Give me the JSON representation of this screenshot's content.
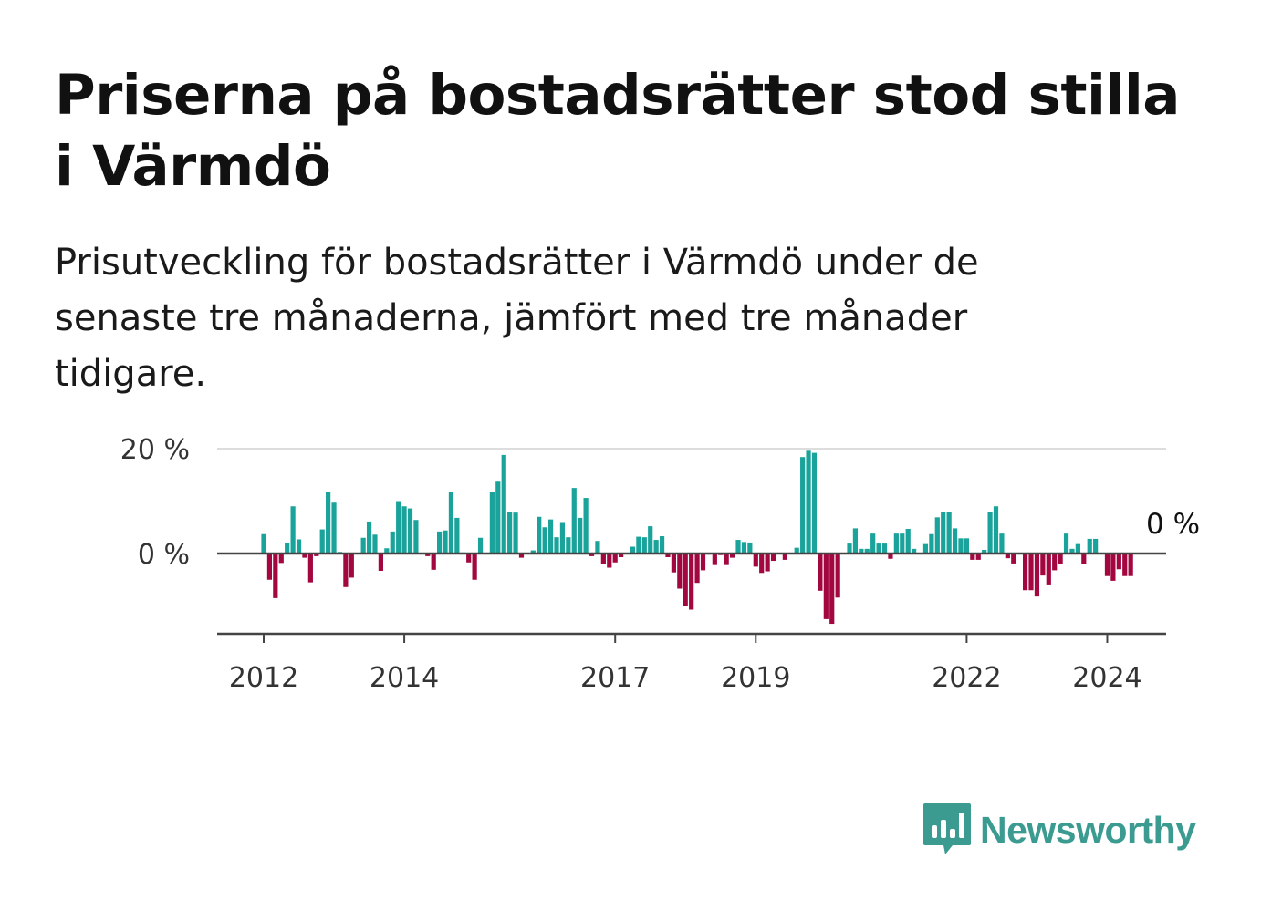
{
  "header": {
    "title": "Priserna på bostadsrätter stod stilla i Värmdö",
    "subtitle": "Prisutveckling för bostadsrätter i Värmdö under de senaste tre månaderna, jämfört med tre månader tidigare."
  },
  "colors": {
    "positive": "#1aa39a",
    "negative": "#a3073f",
    "brand": "#3b9b91"
  },
  "brand": {
    "name": "Newsworthy",
    "icon": "bar-chart-speech-bubble-icon"
  },
  "chart_data": {
    "type": "bar",
    "x_start": "2012-01",
    "x_step": "month",
    "y_unit": "%",
    "ylim": [
      -15,
      20
    ],
    "yticks": [
      {
        "value": 0,
        "label": "0 %"
      },
      {
        "value": 20,
        "label": "20 %"
      }
    ],
    "xticks": [
      {
        "month": "2012-01",
        "label": "2012"
      },
      {
        "month": "2014-01",
        "label": "2014"
      },
      {
        "month": "2017-01",
        "label": "2017"
      },
      {
        "month": "2019-01",
        "label": "2019"
      },
      {
        "month": "2022-01",
        "label": "2022"
      },
      {
        "month": "2024-01",
        "label": "2024"
      }
    ],
    "last_value_label": "0 %",
    "grid": true,
    "values": [
      3.7,
      -5.0,
      -8.5,
      -1.8,
      2.0,
      9.0,
      2.7,
      -0.8,
      -5.5,
      -0.5,
      4.6,
      11.8,
      9.7,
      0.3,
      -6.4,
      -4.6,
      0.0,
      3.0,
      6.1,
      3.6,
      -3.3,
      1.0,
      4.2,
      10.0,
      9.0,
      8.6,
      6.4,
      0.0,
      -0.5,
      -3.1,
      4.2,
      4.4,
      11.7,
      6.8,
      0.2,
      -1.7,
      -5.0,
      3.0,
      0.0,
      11.7,
      13.7,
      18.8,
      8.0,
      7.8,
      -0.8,
      0.0,
      0.6,
      7.0,
      5.0,
      6.5,
      3.1,
      6.0,
      3.1,
      12.5,
      6.8,
      10.6,
      -0.5,
      2.4,
      -2.0,
      -2.7,
      -1.7,
      -0.7,
      0.0,
      1.3,
      3.2,
      3.1,
      5.2,
      2.6,
      3.3,
      -0.7,
      -3.6,
      -6.7,
      -10.0,
      -10.7,
      -5.6,
      -3.2,
      -0.2,
      -2.2,
      -0.3,
      -2.2,
      -0.8,
      2.6,
      2.2,
      2.1,
      -2.5,
      -3.7,
      -3.4,
      -1.4,
      0.0,
      -1.2,
      0.0,
      1.1,
      18.4,
      19.6,
      19.2,
      -7.1,
      -12.5,
      -13.4,
      -8.4,
      0.0,
      1.9,
      4.8,
      0.9,
      0.9,
      3.8,
      1.9,
      1.9,
      -1.0,
      3.8,
      3.8,
      4.7,
      0.9,
      0.0,
      1.8,
      3.7,
      6.9,
      8.0,
      8.0,
      4.8,
      2.9,
      2.9,
      -1.2,
      -1.2,
      0.7,
      8.0,
      9.0,
      3.8,
      -0.9,
      -1.9,
      0.0,
      -7.0,
      -7.0,
      -8.2,
      -4.2,
      -5.9,
      -3.2,
      -2.0,
      3.8,
      0.9,
      1.8,
      -2.0,
      2.8,
      2.8,
      0.0,
      -4.3,
      -5.2,
      -3.0,
      -4.3,
      -4.3,
      0.0
    ]
  }
}
